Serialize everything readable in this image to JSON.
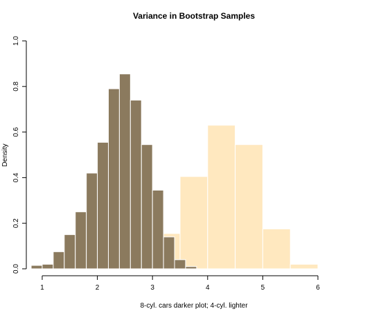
{
  "chart_data": {
    "type": "bar",
    "title": "Variance in Bootstrap Samples",
    "xlabel": "8-cyl. cars darker plot; 4-cyl. lighter",
    "ylabel": "Density",
    "xlim": [
      0.85,
      6.05
    ],
    "ylim": [
      0,
      1.0
    ],
    "xticks": [
      1,
      2,
      3,
      4,
      5,
      6
    ],
    "yticks": [
      0.0,
      0.2,
      0.4,
      0.6,
      0.8,
      1.0
    ],
    "grid": false,
    "legend": "none",
    "series": [
      {
        "color": "#c7c7c7",
        "edge": "#ffffff",
        "bins": [
          {
            "x0": 1.0,
            "x1": 1.5,
            "y": 0.0
          },
          {
            "x0": 3.0,
            "x1": 3.5,
            "y": 0.155
          },
          {
            "x0": 3.5,
            "x1": 4.0,
            "y": 0.405
          },
          {
            "x0": 4.0,
            "x1": 4.5,
            "y": 0.63
          },
          {
            "x0": 4.5,
            "x1": 5.0,
            "y": 0.545
          },
          {
            "x0": 5.0,
            "x1": 5.5,
            "y": 0.175
          },
          {
            "x0": 5.5,
            "x1": 6.0,
            "y": 0.02
          }
        ]
      },
      {
        "color": "#8b7a5e",
        "edge": "#ffffff",
        "bins": [
          {
            "x0": 0.8,
            "x1": 1.0,
            "y": 0.015
          },
          {
            "x0": 1.0,
            "x1": 1.2,
            "y": 0.02
          },
          {
            "x0": 1.2,
            "x1": 1.4,
            "y": 0.075
          },
          {
            "x0": 1.4,
            "x1": 1.6,
            "y": 0.15
          },
          {
            "x0": 1.6,
            "x1": 1.8,
            "y": 0.25
          },
          {
            "x0": 1.8,
            "x1": 2.0,
            "y": 0.42
          },
          {
            "x0": 2.0,
            "x1": 2.2,
            "y": 0.555
          },
          {
            "x0": 2.2,
            "x1": 2.4,
            "y": 0.79
          },
          {
            "x0": 2.4,
            "x1": 2.6,
            "y": 0.855
          },
          {
            "x0": 2.6,
            "x1": 2.8,
            "y": 0.74
          },
          {
            "x0": 2.8,
            "x1": 3.0,
            "y": 0.545
          },
          {
            "x0": 3.0,
            "x1": 3.2,
            "y": 0.345
          },
          {
            "x0": 3.2,
            "x1": 3.4,
            "y": 0.14
          },
          {
            "x0": 3.4,
            "x1": 3.6,
            "y": 0.04
          },
          {
            "x0": 3.6,
            "x1": 3.8,
            "y": 0.01
          }
        ]
      }
    ],
    "light_overlay_color": "#ffe8bf"
  }
}
